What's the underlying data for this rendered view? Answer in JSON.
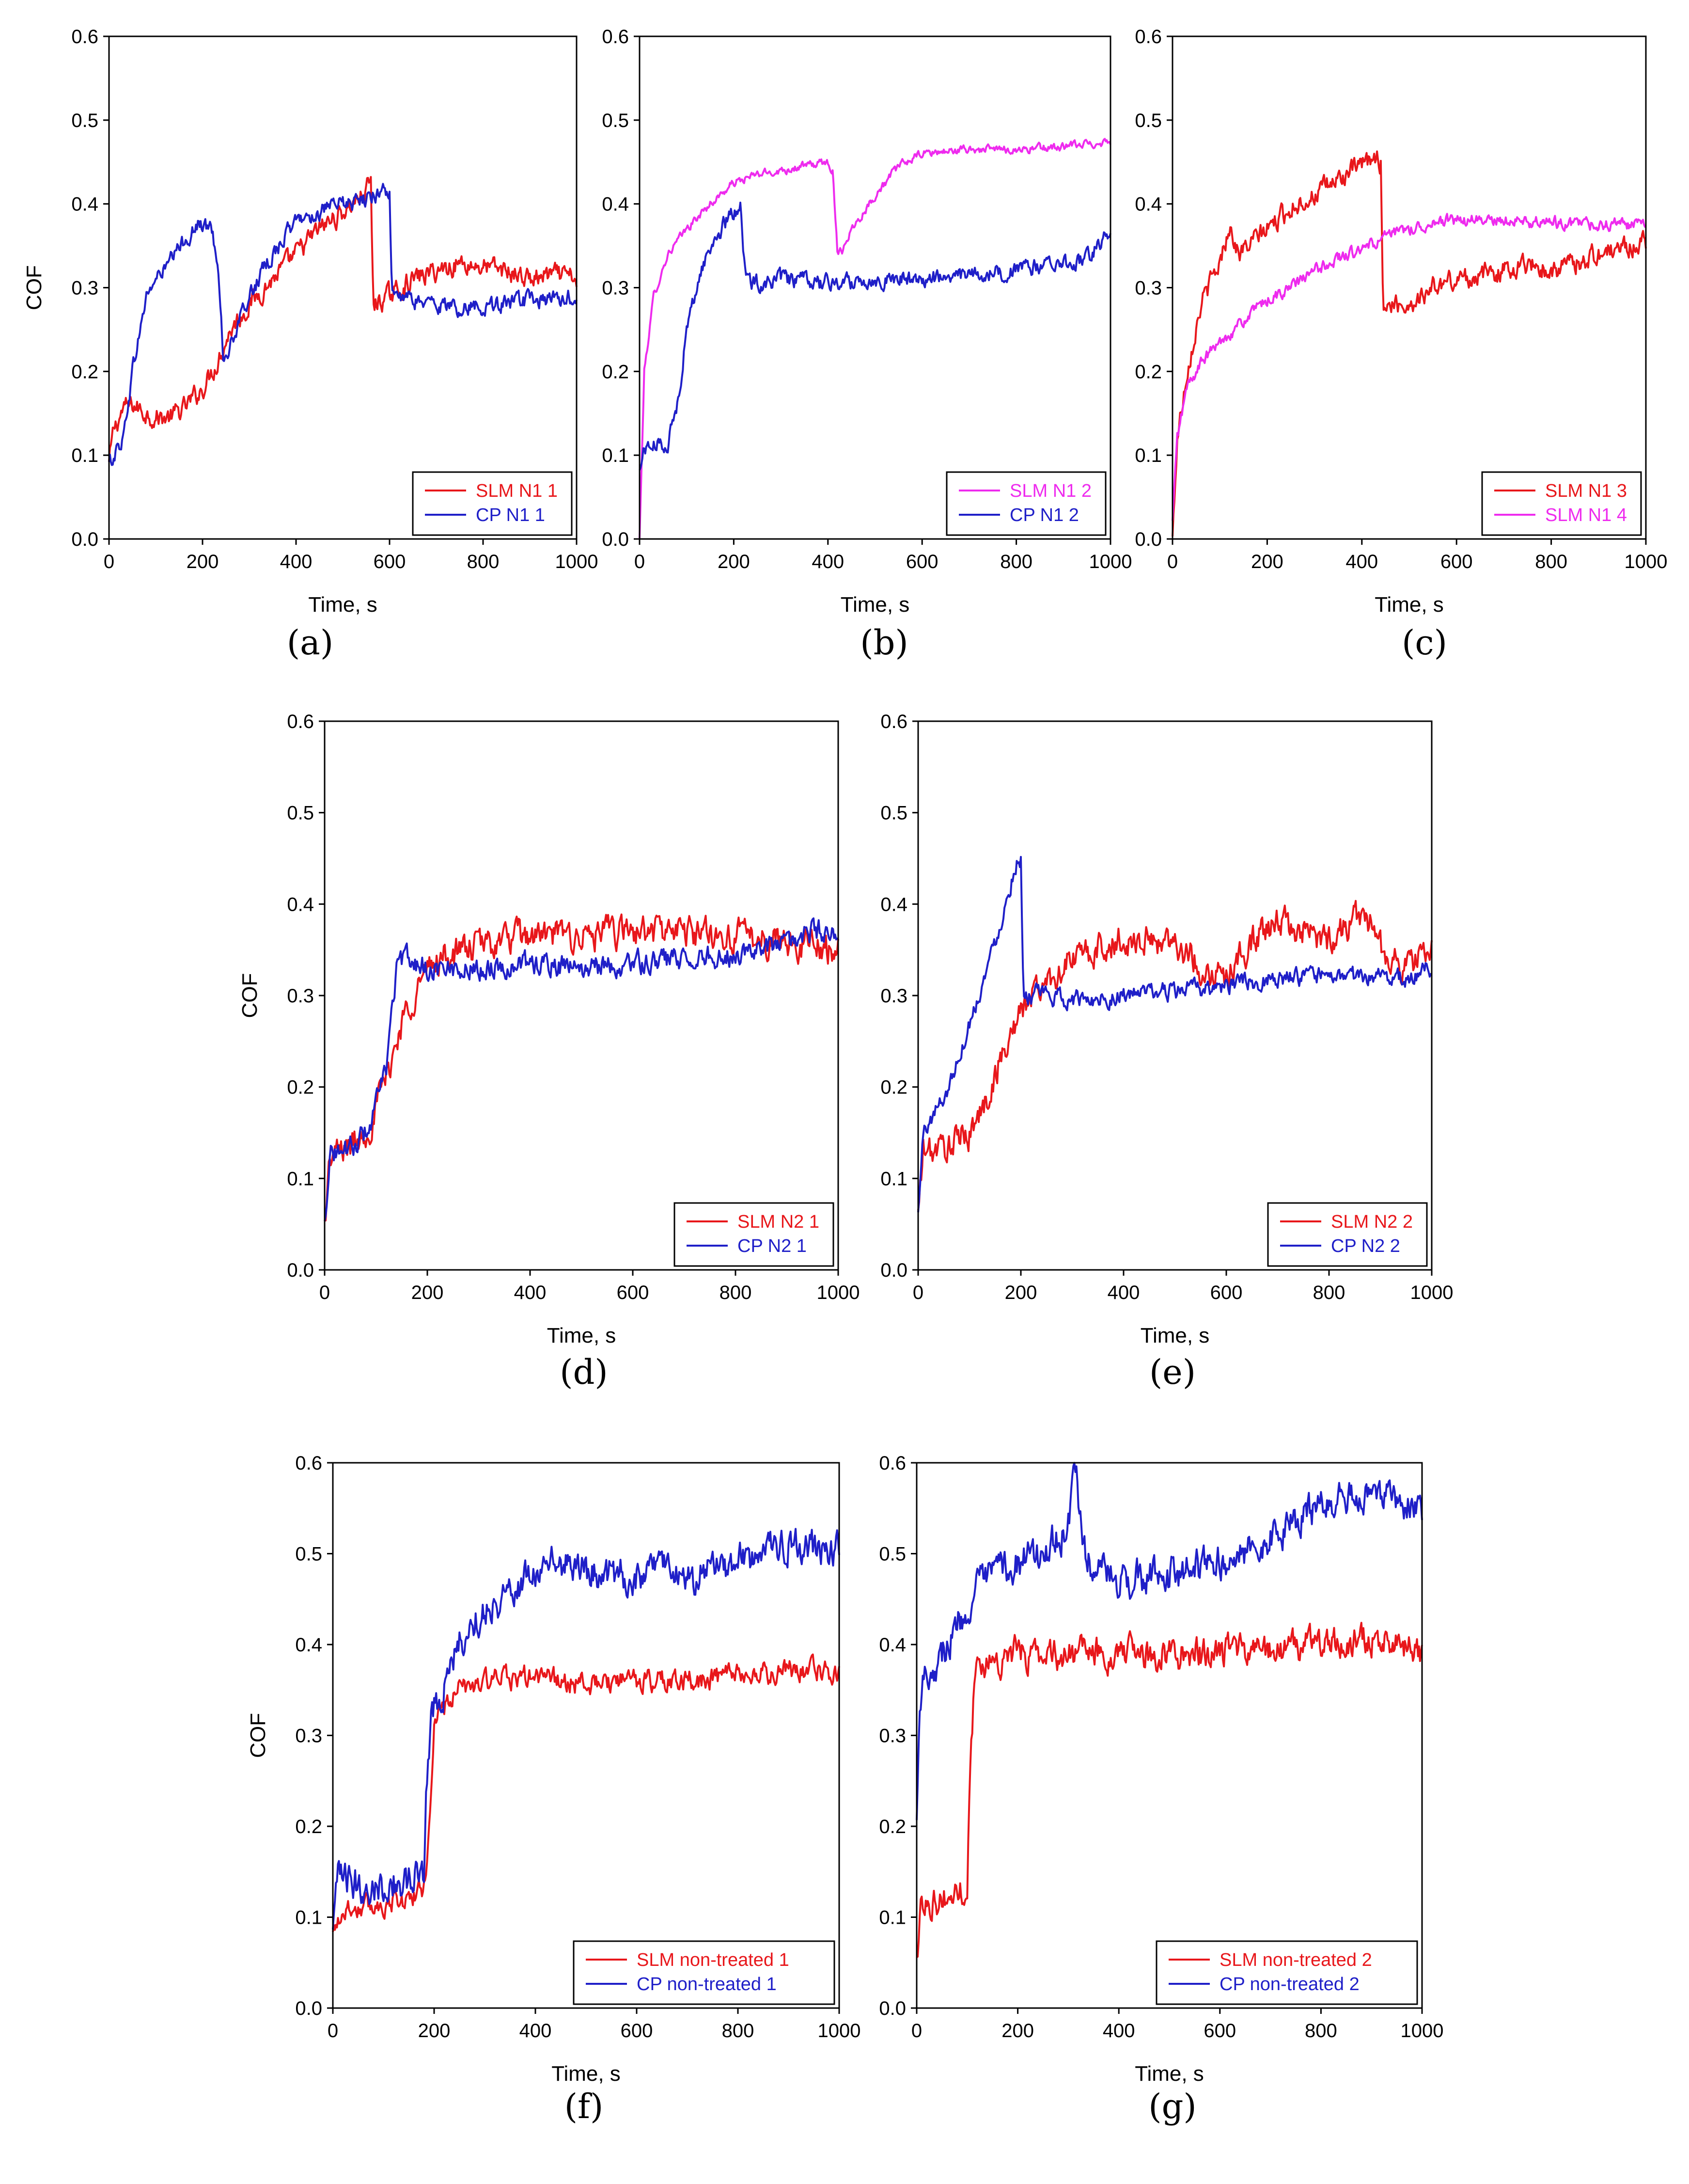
{
  "colors": {
    "red": "#e8171b",
    "blue": "#1f1fc8",
    "magenta": "#ee2bee",
    "axis": "#000000"
  },
  "chart_data": [
    {
      "id": "a",
      "type": "line",
      "caption": "(a)",
      "xlabel": "Time, s",
      "ylabel": "COF",
      "xlim": [
        0,
        1000
      ],
      "ylim": [
        0,
        0.6
      ],
      "xticks": [
        "0",
        "200",
        "400",
        "600",
        "800",
        "1000"
      ],
      "yticks": [
        "0.0",
        "0.1",
        "0.2",
        "0.3",
        "0.4",
        "0.5",
        "0.6"
      ],
      "legend_position": "bottom-right",
      "series": [
        {
          "name": "SLM N1 1",
          "color": "red",
          "noise": 0.01,
          "x": [
            0,
            10,
            30,
            50,
            80,
            100,
            130,
            160,
            200,
            230,
            260,
            300,
            350,
            400,
            450,
            500,
            540,
            560,
            565,
            600,
            650,
            700,
            750,
            800,
            850,
            900,
            950,
            1000
          ],
          "y": [
            0.09,
            0.13,
            0.155,
            0.16,
            0.15,
            0.145,
            0.145,
            0.155,
            0.18,
            0.21,
            0.25,
            0.28,
            0.31,
            0.34,
            0.37,
            0.39,
            0.41,
            0.425,
            0.28,
            0.29,
            0.31,
            0.32,
            0.33,
            0.325,
            0.32,
            0.31,
            0.315,
            0.31
          ]
        },
        {
          "name": "CP N1 1",
          "color": "blue",
          "noise": 0.008,
          "x": [
            0,
            10,
            30,
            50,
            80,
            100,
            130,
            160,
            190,
            220,
            235,
            245,
            260,
            300,
            350,
            400,
            450,
            500,
            550,
            590,
            600,
            605,
            650,
            700,
            750,
            800,
            850,
            900,
            950,
            1000
          ],
          "y": [
            0.09,
            0.1,
            0.12,
            0.2,
            0.29,
            0.31,
            0.33,
            0.355,
            0.375,
            0.37,
            0.32,
            0.21,
            0.23,
            0.29,
            0.34,
            0.38,
            0.39,
            0.4,
            0.405,
            0.42,
            0.41,
            0.29,
            0.285,
            0.28,
            0.275,
            0.28,
            0.28,
            0.285,
            0.285,
            0.29
          ]
        }
      ]
    },
    {
      "id": "b",
      "type": "line",
      "caption": "(b)",
      "xlabel": "Time, s",
      "ylabel": "",
      "xlim": [
        0,
        1000
      ],
      "ylim": [
        0,
        0.6
      ],
      "xticks": [
        "0",
        "200",
        "400",
        "600",
        "800",
        "1000"
      ],
      "yticks": [
        "0.0",
        "0.1",
        "0.2",
        "0.3",
        "0.4",
        "0.5",
        "0.6"
      ],
      "legend_position": "bottom-right",
      "series": [
        {
          "name": "SLM N1 2",
          "color": "magenta",
          "noise": 0.004,
          "x": [
            0,
            10,
            30,
            60,
            100,
            150,
            200,
            250,
            300,
            350,
            400,
            410,
            420,
            430,
            450,
            500,
            550,
            600,
            700,
            800,
            900,
            1000
          ],
          "y": [
            0.0,
            0.2,
            0.29,
            0.34,
            0.37,
            0.4,
            0.425,
            0.435,
            0.44,
            0.445,
            0.45,
            0.44,
            0.345,
            0.345,
            0.37,
            0.41,
            0.445,
            0.46,
            0.465,
            0.465,
            0.468,
            0.475
          ]
        },
        {
          "name": "CP N1 2",
          "color": "blue",
          "noise": 0.008,
          "x": [
            0,
            10,
            20,
            60,
            80,
            100,
            130,
            160,
            200,
            215,
            225,
            240,
            300,
            400,
            500,
            600,
            700,
            800,
            900,
            950,
            1000
          ],
          "y": [
            0.08,
            0.11,
            0.11,
            0.115,
            0.16,
            0.25,
            0.32,
            0.36,
            0.39,
            0.4,
            0.31,
            0.305,
            0.31,
            0.305,
            0.31,
            0.31,
            0.315,
            0.32,
            0.33,
            0.335,
            0.37
          ]
        }
      ]
    },
    {
      "id": "c",
      "type": "line",
      "caption": "(c)",
      "xlabel": "Time, s",
      "ylabel": "",
      "xlim": [
        0,
        1000
      ],
      "ylim": [
        0,
        0.6
      ],
      "xticks": [
        "0",
        "200",
        "400",
        "600",
        "800",
        "1000"
      ],
      "yticks": [
        "0.0",
        "0.1",
        "0.2",
        "0.3",
        "0.4",
        "0.5",
        "0.6"
      ],
      "legend_position": "bottom-right",
      "series": [
        {
          "name": "SLM N1 3",
          "color": "red",
          "noise": 0.01,
          "x": [
            0,
            10,
            30,
            60,
            100,
            120,
            140,
            180,
            220,
            260,
            300,
            350,
            400,
            430,
            440,
            445,
            500,
            550,
            600,
            700,
            750,
            800,
            900,
            1000
          ],
          "y": [
            0.0,
            0.12,
            0.2,
            0.28,
            0.33,
            0.375,
            0.34,
            0.36,
            0.38,
            0.4,
            0.41,
            0.43,
            0.445,
            0.455,
            0.45,
            0.28,
            0.28,
            0.3,
            0.31,
            0.32,
            0.33,
            0.32,
            0.34,
            0.355
          ]
        },
        {
          "name": "SLM N1 4",
          "color": "magenta",
          "noise": 0.006,
          "x": [
            0,
            10,
            30,
            60,
            100,
            150,
            200,
            250,
            300,
            350,
            400,
            450,
            500,
            550,
            600,
            700,
            800,
            900,
            1000
          ],
          "y": [
            0.02,
            0.12,
            0.18,
            0.21,
            0.235,
            0.26,
            0.285,
            0.3,
            0.32,
            0.335,
            0.345,
            0.36,
            0.37,
            0.378,
            0.38,
            0.38,
            0.378,
            0.375,
            0.375
          ]
        }
      ]
    },
    {
      "id": "d",
      "type": "line",
      "caption": "(d)",
      "xlabel": "Time, s",
      "ylabel": "COF",
      "xlim": [
        0,
        1000
      ],
      "ylim": [
        0,
        0.6
      ],
      "xticks": [
        "0",
        "200",
        "400",
        "600",
        "800",
        "1000"
      ],
      "yticks": [
        "0.0",
        "0.1",
        "0.2",
        "0.3",
        "0.4",
        "0.5",
        "0.6"
      ],
      "legend_position": "bottom-right",
      "series": [
        {
          "name": "SLM N2 1",
          "color": "red",
          "noise": 0.014,
          "x": [
            0,
            10,
            30,
            60,
            90,
            120,
            150,
            180,
            220,
            300,
            400,
            500,
            600,
            700,
            800,
            900,
            1000
          ],
          "y": [
            0.05,
            0.12,
            0.13,
            0.14,
            0.16,
            0.21,
            0.27,
            0.31,
            0.34,
            0.355,
            0.365,
            0.365,
            0.37,
            0.37,
            0.365,
            0.36,
            0.35
          ]
        },
        {
          "name": "CP N2 1",
          "color": "blue",
          "noise": 0.01,
          "x": [
            0,
            10,
            30,
            60,
            90,
            120,
            140,
            160,
            200,
            300,
            400,
            500,
            600,
            700,
            800,
            900,
            950,
            1000
          ],
          "y": [
            0.05,
            0.13,
            0.13,
            0.135,
            0.16,
            0.22,
            0.33,
            0.34,
            0.33,
            0.33,
            0.335,
            0.33,
            0.335,
            0.34,
            0.345,
            0.355,
            0.37,
            0.37
          ]
        }
      ]
    },
    {
      "id": "e",
      "type": "line",
      "caption": "(e)",
      "xlabel": "Time, s",
      "ylabel": "",
      "xlim": [
        0,
        1000
      ],
      "ylim": [
        0,
        0.6
      ],
      "xticks": [
        "0",
        "200",
        "400",
        "600",
        "800",
        "1000"
      ],
      "yticks": [
        "0.0",
        "0.1",
        "0.2",
        "0.3",
        "0.4",
        "0.5",
        "0.6"
      ],
      "legend_position": "bottom-right",
      "series": [
        {
          "name": "SLM N2 2",
          "color": "red",
          "noise": 0.014,
          "x": [
            0,
            10,
            30,
            60,
            100,
            130,
            160,
            190,
            220,
            260,
            300,
            400,
            500,
            550,
            600,
            650,
            700,
            750,
            800,
            860,
            880,
            900,
            950,
            1000
          ],
          "y": [
            0.06,
            0.13,
            0.13,
            0.135,
            0.15,
            0.18,
            0.23,
            0.27,
            0.3,
            0.32,
            0.34,
            0.36,
            0.36,
            0.33,
            0.32,
            0.36,
            0.38,
            0.37,
            0.36,
            0.39,
            0.38,
            0.35,
            0.33,
            0.35
          ]
        },
        {
          "name": "CP N2 2",
          "color": "blue",
          "noise": 0.008,
          "x": [
            0,
            10,
            30,
            60,
            100,
            140,
            170,
            195,
            200,
            205,
            250,
            300,
            400,
            500,
            600,
            700,
            800,
            900,
            950,
            1000
          ],
          "y": [
            0.06,
            0.15,
            0.17,
            0.2,
            0.27,
            0.34,
            0.4,
            0.455,
            0.45,
            0.3,
            0.3,
            0.295,
            0.3,
            0.305,
            0.31,
            0.32,
            0.32,
            0.32,
            0.32,
            0.33
          ]
        }
      ]
    },
    {
      "id": "f",
      "type": "line",
      "caption": "(f)",
      "xlabel": "Time, s",
      "ylabel": "COF",
      "xlim": [
        0,
        1000
      ],
      "ylim": [
        0,
        0.6
      ],
      "xticks": [
        "0",
        "200",
        "400",
        "600",
        "800",
        "1000"
      ],
      "yticks": [
        "0.0",
        "0.1",
        "0.2",
        "0.3",
        "0.4",
        "0.5",
        "0.6"
      ],
      "legend_position": "bottom-right",
      "series": [
        {
          "name": "SLM  non-treated 1",
          "color": "red",
          "noise": 0.01,
          "x": [
            0,
            10,
            30,
            60,
            100,
            150,
            180,
            190,
            200,
            215,
            250,
            300,
            400,
            500,
            600,
            700,
            800,
            900,
            1000
          ],
          "y": [
            0.08,
            0.1,
            0.11,
            0.11,
            0.115,
            0.12,
            0.13,
            0.2,
            0.31,
            0.33,
            0.35,
            0.36,
            0.365,
            0.355,
            0.36,
            0.36,
            0.365,
            0.37,
            0.37
          ]
        },
        {
          "name": "CP non-treated 1",
          "color": "blue",
          "noise": 0.016,
          "x": [
            0,
            10,
            30,
            60,
            100,
            150,
            180,
            185,
            195,
            210,
            250,
            300,
            350,
            400,
            450,
            500,
            600,
            650,
            700,
            750,
            800,
            900,
            1000
          ],
          "y": [
            0.08,
            0.14,
            0.14,
            0.135,
            0.135,
            0.14,
            0.15,
            0.25,
            0.33,
            0.34,
            0.4,
            0.44,
            0.46,
            0.48,
            0.49,
            0.48,
            0.475,
            0.49,
            0.47,
            0.48,
            0.49,
            0.51,
            0.5
          ]
        }
      ]
    },
    {
      "id": "g",
      "type": "line",
      "caption": "(g)",
      "xlabel": "Time, s",
      "ylabel": "",
      "xlim": [
        0,
        1000
      ],
      "ylim": [
        0,
        0.6
      ],
      "xticks": [
        "0",
        "200",
        "400",
        "600",
        "800",
        "1000"
      ],
      "yticks": [
        "0.0",
        "0.1",
        "0.2",
        "0.3",
        "0.4",
        "0.5",
        "0.6"
      ],
      "legend_position": "bottom-right",
      "series": [
        {
          "name": "SLM  non-treated 2",
          "color": "red",
          "noise": 0.014,
          "x": [
            0,
            10,
            30,
            60,
            90,
            100,
            105,
            115,
            130,
            200,
            300,
            400,
            500,
            600,
            700,
            800,
            900,
            1000
          ],
          "y": [
            0.05,
            0.12,
            0.12,
            0.12,
            0.13,
            0.14,
            0.25,
            0.37,
            0.38,
            0.39,
            0.39,
            0.39,
            0.39,
            0.39,
            0.395,
            0.4,
            0.405,
            0.39
          ]
        },
        {
          "name": "CP non-treated 2",
          "color": "blue",
          "noise": 0.016,
          "x": [
            0,
            5,
            15,
            40,
            80,
            120,
            160,
            200,
            250,
            300,
            315,
            330,
            360,
            400,
            500,
            600,
            700,
            800,
            850,
            900,
            950,
            1000
          ],
          "y": [
            0.2,
            0.34,
            0.37,
            0.38,
            0.42,
            0.46,
            0.48,
            0.49,
            0.5,
            0.53,
            0.59,
            0.5,
            0.48,
            0.47,
            0.475,
            0.49,
            0.52,
            0.55,
            0.56,
            0.56,
            0.56,
            0.54
          ]
        }
      ]
    }
  ]
}
